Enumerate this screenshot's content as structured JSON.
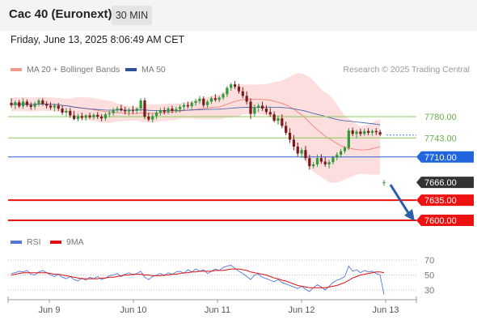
{
  "header": {
    "title": "Cac 40 (Euronext)",
    "timeframe": "30 MIN",
    "datetime": "Friday, June 13, 2025 8:06:49 AM CET"
  },
  "legend": {
    "ma20_label": "MA 20 + Bollinger Bands",
    "ma50_label": "MA 50",
    "rsi_label": "RSI",
    "rsi_ma_label": "9MA",
    "copyright": "Research © 2025 Trading Central"
  },
  "colors": {
    "candle_up": "#2e9a3a",
    "candle_down": "#7a1a1a",
    "bollinger_band": "#fbd3d3",
    "ma20": "#f08a80",
    "ma50": "#3a5aa8",
    "resistance": "#8ccc5a",
    "pivot": "#2266dd",
    "support": "#ee1111",
    "arrow": "#2a5ea8",
    "rsi": "#5577dd",
    "rsi_ma": "#dd1111"
  },
  "chart_data": [
    {
      "type": "candlestick",
      "title": "Cac 40 (Euronext)",
      "x_tick_labels": [
        "Jun 9",
        "Jun 10",
        "Jun 11",
        "Jun 12",
        "Jun 13"
      ],
      "y_range": [
        7580,
        7860
      ],
      "last_price": 7666.0,
      "candles_ohlc": [
        [
          7804,
          7812,
          7796,
          7800
        ],
        [
          7800,
          7808,
          7793,
          7805
        ],
        [
          7805,
          7809,
          7795,
          7798
        ],
        [
          7798,
          7812,
          7794,
          7806
        ],
        [
          7806,
          7810,
          7797,
          7800
        ],
        [
          7800,
          7805,
          7792,
          7797
        ],
        [
          7797,
          7806,
          7792,
          7803
        ],
        [
          7803,
          7811,
          7798,
          7808
        ],
        [
          7808,
          7812,
          7799,
          7802
        ],
        [
          7802,
          7807,
          7794,
          7799
        ],
        [
          7799,
          7805,
          7792,
          7796
        ],
        [
          7796,
          7803,
          7789,
          7799
        ],
        [
          7799,
          7804,
          7790,
          7794
        ],
        [
          7794,
          7799,
          7783,
          7787
        ],
        [
          7787,
          7795,
          7781,
          7790
        ],
        [
          7790,
          7795,
          7778,
          7782
        ],
        [
          7782,
          7790,
          7774,
          7776
        ],
        [
          7776,
          7785,
          7772,
          7781
        ],
        [
          7781,
          7787,
          7774,
          7778
        ],
        [
          7778,
          7784,
          7773,
          7782
        ],
        [
          7782,
          7787,
          7776,
          7779
        ],
        [
          7779,
          7786,
          7775,
          7783
        ],
        [
          7783,
          7788,
          7776,
          7780
        ],
        [
          7780,
          7784,
          7772,
          7777
        ],
        [
          7777,
          7787,
          7773,
          7784
        ],
        [
          7784,
          7790,
          7779,
          7786
        ],
        [
          7786,
          7795,
          7782,
          7792
        ],
        [
          7792,
          7798,
          7787,
          7794
        ],
        [
          7794,
          7801,
          7789,
          7791
        ],
        [
          7791,
          7797,
          7784,
          7789
        ],
        [
          7789,
          7795,
          7782,
          7792
        ],
        [
          7792,
          7799,
          7785,
          7790
        ],
        [
          7790,
          7796,
          7785,
          7794
        ],
        [
          7794,
          7812,
          7789,
          7808
        ],
        [
          7808,
          7812,
          7776,
          7780
        ],
        [
          7780,
          7787,
          7772,
          7775
        ],
        [
          7775,
          7785,
          7770,
          7781
        ],
        [
          7781,
          7791,
          7776,
          7787
        ],
        [
          7787,
          7795,
          7782,
          7791
        ],
        [
          7791,
          7796,
          7784,
          7788
        ],
        [
          7788,
          7797,
          7784,
          7794
        ],
        [
          7794,
          7799,
          7786,
          7790
        ],
        [
          7790,
          7797,
          7786,
          7793
        ],
        [
          7793,
          7801,
          7787,
          7797
        ],
        [
          7797,
          7804,
          7791,
          7800
        ],
        [
          7800,
          7806,
          7794,
          7798
        ],
        [
          7798,
          7807,
          7793,
          7804
        ],
        [
          7804,
          7811,
          7799,
          7807
        ],
        [
          7807,
          7816,
          7802,
          7811
        ],
        [
          7811,
          7815,
          7796,
          7800
        ],
        [
          7800,
          7809,
          7795,
          7806
        ],
        [
          7806,
          7815,
          7802,
          7812
        ],
        [
          7812,
          7819,
          7806,
          7809
        ],
        [
          7809,
          7816,
          7805,
          7813
        ],
        [
          7813,
          7822,
          7809,
          7819
        ],
        [
          7819,
          7833,
          7814,
          7830
        ],
        [
          7830,
          7839,
          7825,
          7836
        ],
        [
          7836,
          7842,
          7828,
          7832
        ],
        [
          7832,
          7837,
          7820,
          7824
        ],
        [
          7824,
          7831,
          7812,
          7816
        ],
        [
          7816,
          7824,
          7801,
          7806
        ],
        [
          7806,
          7812,
          7776,
          7785
        ],
        [
          7785,
          7801,
          7780,
          7796
        ],
        [
          7796,
          7803,
          7788,
          7799
        ],
        [
          7799,
          7806,
          7790,
          7794
        ],
        [
          7794,
          7800,
          7784,
          7788
        ],
        [
          7788,
          7795,
          7780,
          7784
        ],
        [
          7784,
          7789,
          7770,
          7773
        ],
        [
          7773,
          7782,
          7766,
          7777
        ],
        [
          7777,
          7784,
          7760,
          7764
        ],
        [
          7764,
          7771,
          7748,
          7752
        ],
        [
          7752,
          7760,
          7734,
          7740
        ],
        [
          7740,
          7748,
          7722,
          7728
        ],
        [
          7728,
          7735,
          7711,
          7716
        ],
        [
          7716,
          7726,
          7708,
          7722
        ],
        [
          7722,
          7729,
          7704,
          7708
        ],
        [
          7708,
          7714,
          7688,
          7694
        ],
        [
          7694,
          7701,
          7690,
          7697
        ],
        [
          7697,
          7714,
          7693,
          7708
        ],
        [
          7708,
          7715,
          7698,
          7702
        ],
        [
          7702,
          7710,
          7693,
          7697
        ],
        [
          7697,
          7705,
          7690,
          7701
        ],
        [
          7701,
          7712,
          7697,
          7709
        ],
        [
          7709,
          7718,
          7704,
          7714
        ],
        [
          7714,
          7724,
          7709,
          7720
        ],
        [
          7720,
          7729,
          7716,
          7726
        ],
        [
          7726,
          7760,
          7722,
          7756
        ],
        [
          7756,
          7761,
          7746,
          7750
        ],
        [
          7750,
          7757,
          7742,
          7754
        ],
        [
          7754,
          7759,
          7746,
          7750
        ],
        [
          7750,
          7759,
          7747,
          7755
        ],
        [
          7755,
          7760,
          7748,
          7752
        ],
        [
          7752,
          7758,
          7747,
          7755
        ],
        [
          7755,
          7760,
          7748,
          7753
        ],
        [
          7753,
          7757,
          7746,
          7749
        ],
        [
          7666,
          7670,
          7660,
          7666
        ]
      ],
      "lines": [
        {
          "label": "7780.00",
          "value": 7780.0,
          "role": "resistance"
        },
        {
          "label": "7743.00",
          "value": 7743.0,
          "role": "resistance"
        },
        {
          "label": "7710.00",
          "value": 7710.0,
          "role": "pivot"
        },
        {
          "label": "7666.00",
          "value": 7666.0,
          "role": "last"
        },
        {
          "label": "7635.00",
          "value": 7635.0,
          "role": "support"
        },
        {
          "label": "7600.00",
          "value": 7600.0,
          "role": "support"
        }
      ],
      "arrow": {
        "from": 7666.0,
        "to": 7600.0,
        "direction": "down"
      },
      "series": [
        {
          "name": "MA 20 + Bollinger Bands"
        },
        {
          "name": "MA 50"
        }
      ]
    },
    {
      "type": "line",
      "title": "",
      "x_tick_labels": [
        "Jun 9",
        "Jun 10",
        "Jun 11",
        "Jun 12",
        "Jun 13"
      ],
      "y_range": [
        20,
        80
      ],
      "y_ticks": [
        70,
        50,
        30
      ],
      "series": [
        {
          "name": "RSI",
          "values": [
            52,
            53,
            55,
            54,
            56,
            51,
            50,
            54,
            56,
            53,
            50,
            48,
            51,
            47,
            45,
            48,
            44,
            42,
            46,
            43,
            47,
            45,
            48,
            44,
            46,
            49,
            50,
            52,
            48,
            51,
            53,
            50,
            52,
            55,
            47,
            44,
            48,
            50,
            52,
            49,
            53,
            51,
            54,
            55,
            52,
            57,
            54,
            58,
            55,
            57,
            52,
            55,
            58,
            56,
            60,
            62,
            63,
            59,
            55,
            52,
            48,
            44,
            50,
            51,
            47,
            45,
            43,
            41,
            44,
            40,
            38,
            36,
            34,
            32,
            35,
            31,
            28,
            33,
            37,
            34,
            30,
            35,
            40,
            43,
            45,
            48,
            62,
            55,
            57,
            53,
            56,
            54,
            55,
            52,
            50,
            24
          ]
        },
        {
          "name": "9MA",
          "values": [
            50,
            51,
            52,
            53,
            53,
            53,
            53,
            53,
            53,
            53,
            52,
            51,
            51,
            50,
            49,
            48,
            47,
            46,
            45,
            45,
            45,
            45,
            45,
            46,
            46,
            47,
            47,
            48,
            49,
            50,
            50,
            51,
            51,
            51,
            50,
            50,
            49,
            49,
            49,
            50,
            50,
            51,
            51,
            52,
            53,
            53,
            54,
            54,
            55,
            55,
            55,
            55,
            56,
            56,
            56,
            57,
            58,
            58,
            58,
            57,
            56,
            54,
            53,
            52,
            51,
            50,
            48,
            46,
            45,
            43,
            42,
            40,
            38,
            36,
            35,
            34,
            33,
            33,
            33,
            33,
            33,
            34,
            35,
            36,
            38,
            40,
            43,
            46,
            48,
            50,
            51,
            52,
            53,
            54,
            54,
            53
          ]
        }
      ]
    }
  ]
}
